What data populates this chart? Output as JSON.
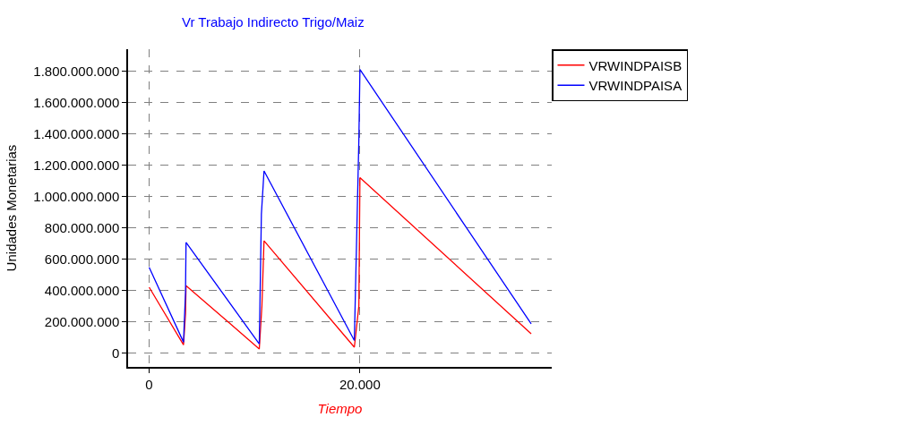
{
  "chart_data": {
    "type": "line",
    "title": "Vr Trabajo Indirecto Trigo/Maiz",
    "xlabel": "Tiempo",
    "ylabel": "Unidades Monetarias",
    "series": [
      {
        "name": "VRWINDPAISB",
        "color": "#ff0000",
        "x": [
          0,
          3260,
          3450,
          3500,
          10450,
          10700,
          10900,
          19470,
          19900,
          20000,
          36250
        ],
        "values": [
          419000000,
          51000000,
          250000000,
          429000000,
          25000000,
          300000000,
          716000000,
          36000000,
          300000000,
          1120000000,
          121000000
        ]
      },
      {
        "name": "VRWINDPAISA",
        "color": "#0000ff",
        "x": [
          0,
          3260,
          3450,
          3500,
          10450,
          10650,
          10900,
          19470,
          19900,
          20000,
          36250
        ],
        "values": [
          546000000,
          68000000,
          387000000,
          705000000,
          57000000,
          886000000,
          1162000000,
          79000000,
          1364000000,
          1810000000,
          185000000
        ]
      }
    ],
    "xlim": [
      -2000,
      38200
    ],
    "ylim": [
      -90000000,
      1940000000
    ],
    "xticks": [
      0,
      {
        "value": 20000,
        "label": "20.000"
      }
    ],
    "yticks": [
      0,
      {
        "value": 200000000,
        "label": "200.000.000"
      },
      {
        "value": 400000000,
        "label": "400.000.000"
      },
      {
        "value": 600000000,
        "label": "600.000.000"
      },
      {
        "value": 800000000,
        "label": "800.000.000"
      },
      {
        "value": 1000000000,
        "label": "1.000.000.000"
      },
      {
        "value": 1200000000,
        "label": "1.200.000.000"
      },
      {
        "value": 1400000000,
        "label": "1.400.000.000"
      },
      {
        "value": 1600000000,
        "label": "1.600.000.000"
      },
      {
        "value": 1800000000,
        "label": "1.800.000.000"
      }
    ],
    "grid": true,
    "legend": "top right",
    "marker": "none",
    "line_style": "solid"
  }
}
